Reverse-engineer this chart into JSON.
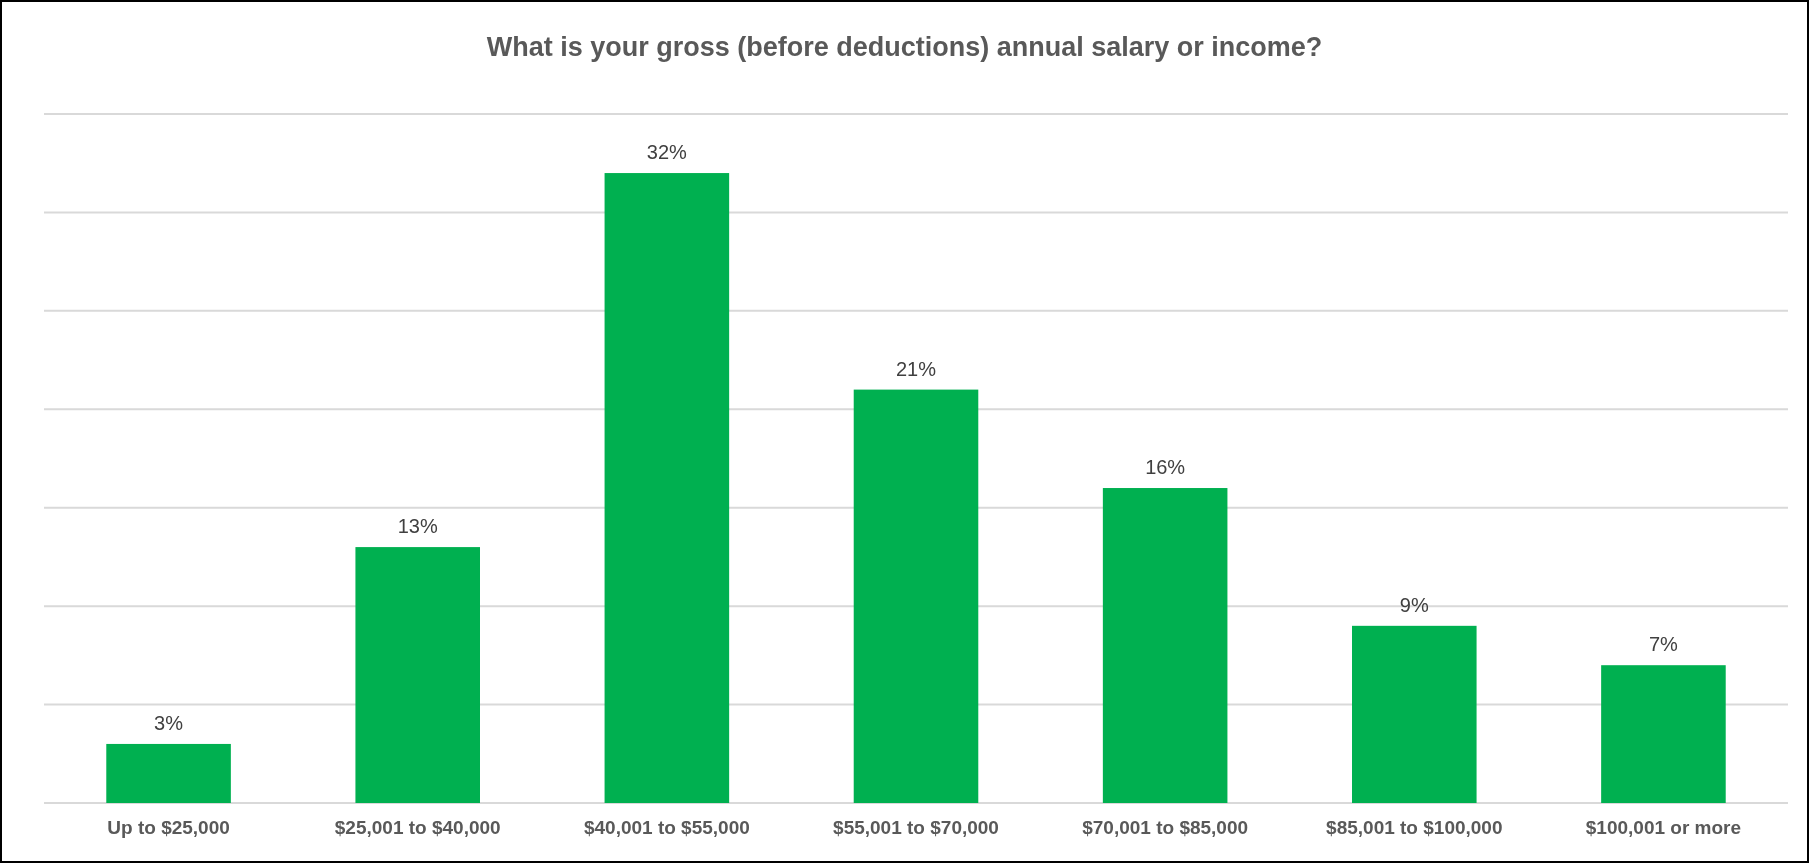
{
  "chart_data": {
    "type": "bar",
    "title": "What is your gross (before deductions) annual salary or income?",
    "categories": [
      "Up to $25,000",
      "$25,001 to $40,000",
      "$40,001 to $55,000",
      "$55,001 to $70,000",
      "$70,001 to $85,000",
      "$85,001 to $100,000",
      "$100,001 or more"
    ],
    "values": [
      3,
      13,
      32,
      21,
      16,
      9,
      7
    ],
    "value_labels": [
      "3%",
      "13%",
      "32%",
      "21%",
      "16%",
      "9%",
      "7%"
    ],
    "color": "#00b050",
    "ylim": [
      0,
      35
    ],
    "yticks": [
      {
        "value": 0,
        "label": null
      },
      {
        "value": 5,
        "label": null
      },
      {
        "value": 10,
        "label": null
      },
      {
        "value": 15,
        "label": null
      },
      {
        "value": 20,
        "label": null
      },
      {
        "value": 25,
        "label": null
      },
      {
        "value": 30,
        "label": null
      },
      {
        "value": 35,
        "label": null
      }
    ],
    "tick_labels": "x",
    "grid": "y"
  }
}
